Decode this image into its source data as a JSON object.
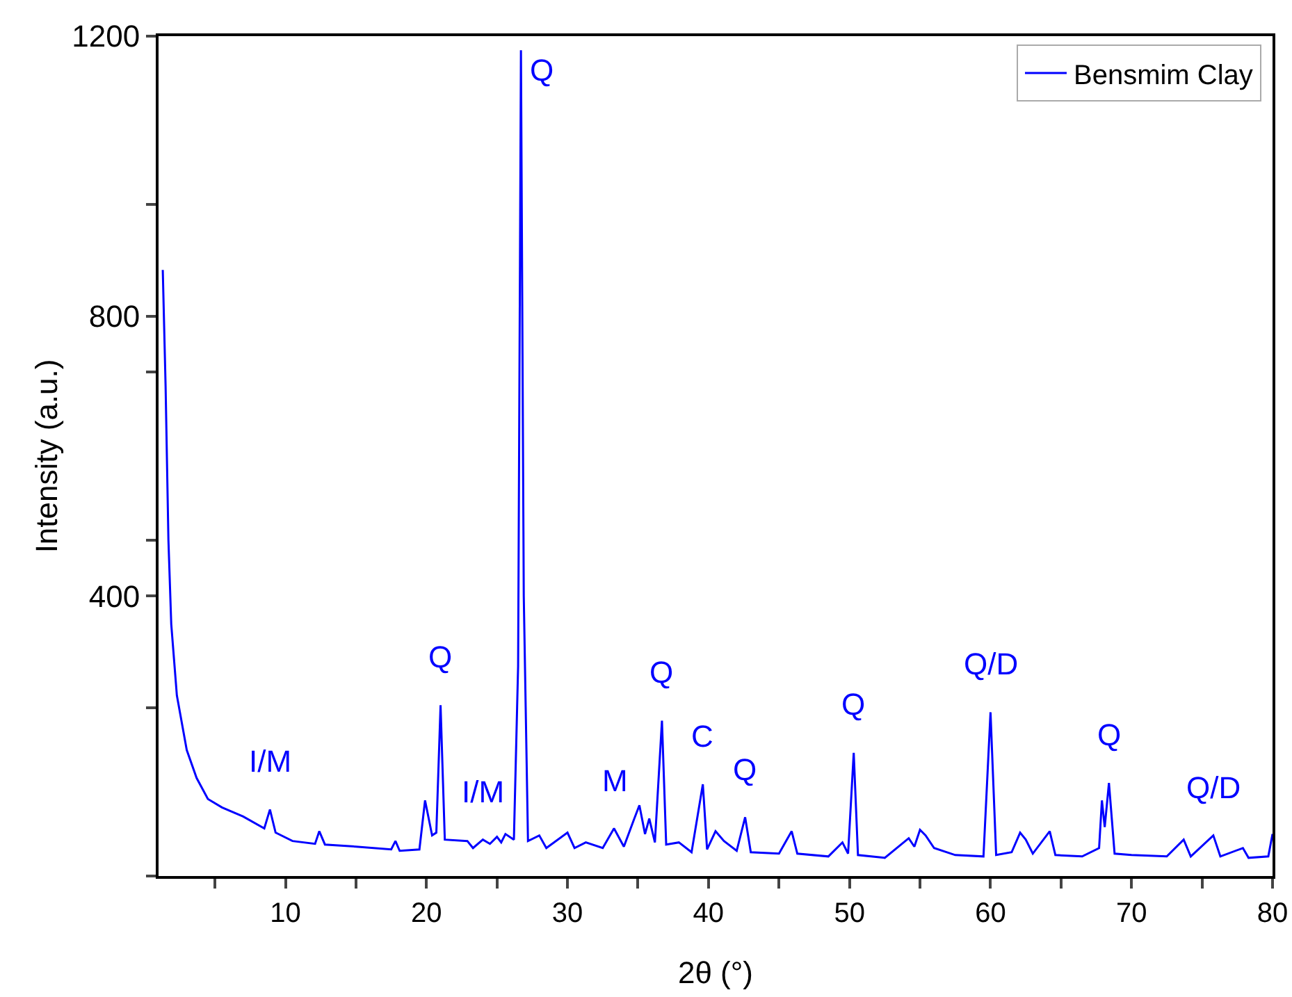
{
  "chart_data": {
    "type": "line",
    "xlabel": "2θ (°)",
    "ylabel": "Intensity (a.u.)",
    "xlim": [
      1,
      80
    ],
    "ylim": [
      0,
      1200
    ],
    "xticks": [
      {
        "value": 5,
        "label": null
      },
      10,
      {
        "value": 15,
        "label": null
      },
      20,
      {
        "value": 25,
        "label": null
      },
      30,
      {
        "value": 35,
        "label": null
      },
      40,
      {
        "value": 45,
        "label": null
      },
      50,
      {
        "value": 55,
        "label": null
      },
      60,
      {
        "value": 65,
        "label": null
      },
      70,
      {
        "value": 75,
        "label": null
      },
      80
    ],
    "yticks": [
      {
        "value": 0,
        "label": null
      },
      {
        "value": 240,
        "label": null
      },
      400,
      {
        "value": 480,
        "label": null
      },
      {
        "value": 720,
        "label": null
      },
      800,
      {
        "value": 960,
        "label": null
      },
      1200
    ],
    "grid": false,
    "legend": "top right",
    "marker": "none",
    "line_style": "solid",
    "series": [
      {
        "name": "Bensmim Clay",
        "color": "#0000ff",
        "x": [
          1.3,
          1.5,
          1.7,
          1.9,
          2.3,
          3.0,
          3.7,
          4.5,
          5.5,
          7,
          8.5,
          8.9,
          9.3,
          10.5,
          12.1,
          12.4,
          12.8,
          15,
          17.5,
          17.8,
          18.1,
          19.5,
          19.9,
          20.4,
          20.7,
          21.0,
          21.3,
          22.9,
          23.3,
          24.0,
          24.5,
          25.0,
          25.3,
          25.6,
          26.2,
          26.5,
          26.7,
          26.9,
          27.2,
          28.0,
          28.5,
          30.0,
          30.5,
          31.3,
          32.5,
          33.3,
          34.0,
          34.7,
          35.1,
          35.5,
          35.8,
          36.2,
          36.7,
          37.0,
          37.9,
          38.8,
          39.6,
          39.9,
          40.5,
          41.1,
          42.0,
          42.6,
          43.0,
          45.0,
          45.5,
          45.9,
          46.3,
          48.5,
          49.5,
          49.9,
          50.3,
          50.6,
          52.5,
          54.2,
          54.6,
          55.0,
          55.4,
          56,
          57.5,
          59.5,
          60.0,
          60.4,
          61.5,
          62.1,
          62.5,
          63.0,
          64.2,
          64.6,
          66.5,
          67.7,
          67.9,
          68.1,
          68.4,
          68.8,
          70,
          72.5,
          73.7,
          74.2,
          75.8,
          76.3,
          77.9,
          78.3,
          79.7,
          80
        ],
        "values": [
          866,
          700,
          480,
          360,
          258,
          180,
          140,
          110,
          98,
          85,
          68,
          95,
          62,
          50,
          46,
          64,
          45,
          42,
          38,
          50,
          36,
          38,
          108,
          58,
          62,
          244,
          52,
          50,
          40,
          52,
          46,
          56,
          48,
          60,
          52,
          300,
          1180,
          400,
          50,
          58,
          40,
          62,
          40,
          48,
          40,
          68,
          42,
          80,
          101,
          60,
          82,
          48,
          222,
          45,
          48,
          34,
          131,
          38,
          64,
          50,
          36,
          84,
          34,
          32,
          50,
          64,
          32,
          28,
          48,
          32,
          176,
          30,
          26,
          54,
          42,
          66,
          58,
          40,
          30,
          28,
          234,
          30,
          34,
          62,
          52,
          32,
          64,
          30,
          28,
          40,
          108,
          70,
          133,
          32,
          30,
          28,
          52,
          28,
          58,
          28,
          40,
          26,
          28,
          60
        ]
      }
    ],
    "annotations": [
      {
        "text": "I/M",
        "x": 8.9,
        "y": 95
      },
      {
        "text": "Q",
        "x": 21.0,
        "y": 244
      },
      {
        "text": "I/M",
        "x": 24.0,
        "y": 52
      },
      {
        "text": "Q",
        "x": 26.7,
        "y": 1180
      },
      {
        "text": "M",
        "x": 33.3,
        "y": 68
      },
      {
        "text": "Q",
        "x": 36.7,
        "y": 222
      },
      {
        "text": "C",
        "x": 39.6,
        "y": 131
      },
      {
        "text": "Q",
        "x": 42.6,
        "y": 84
      },
      {
        "text": "Q",
        "x": 50.3,
        "y": 176
      },
      {
        "text": "Q/D",
        "x": 60.0,
        "y": 234
      },
      {
        "text": "Q",
        "x": 68.4,
        "y": 133
      },
      {
        "text": "Q/D",
        "x": 75.8,
        "y": 58
      }
    ]
  }
}
